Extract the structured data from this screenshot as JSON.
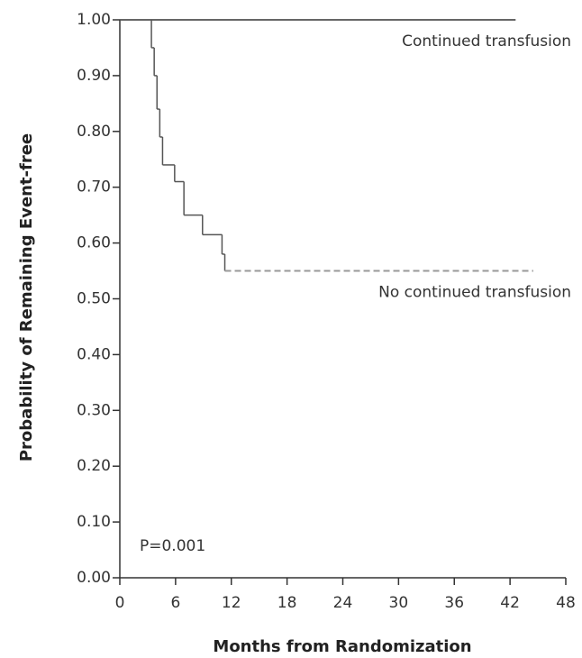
{
  "chart_data": {
    "type": "step",
    "x_label": "Months from Randomization",
    "y_label": "Probability of Remaining Event-free",
    "annotations": [
      "P=0.001"
    ],
    "xlim": [
      0,
      48
    ],
    "xticks": [
      0,
      6,
      12,
      18,
      24,
      30,
      36,
      42,
      48
    ],
    "ylim": [
      0,
      1
    ],
    "yticks": [
      {
        "value": 0,
        "label": "0.00"
      },
      {
        "value": 0.1,
        "label": "0.10"
      },
      {
        "value": 0.2,
        "label": "0.20"
      },
      {
        "value": 0.3,
        "label": "0.30"
      },
      {
        "value": 0.4,
        "label": "0.40"
      },
      {
        "value": 0.5,
        "label": "0.50"
      },
      {
        "value": 0.6,
        "label": "0.60"
      },
      {
        "value": 0.7,
        "label": "0.70"
      },
      {
        "value": 0.8,
        "label": "0.80"
      },
      {
        "value": 0.9,
        "label": "0.90"
      },
      {
        "value": 1,
        "label": "1.00"
      }
    ],
    "grid": false,
    "series": [
      {
        "name": "Continued transfusion",
        "color": "#333333",
        "tail": "solid",
        "x": [
          0,
          42.6
        ],
        "values": [
          1.0,
          1.0
        ]
      },
      {
        "name": "No continued transfusion",
        "color": "#555555",
        "tail": "dashed",
        "x": [
          0,
          3.4,
          3.7,
          4.0,
          4.3,
          4.6,
          5.9,
          6.9,
          8.9,
          11.0,
          11.3,
          44.5
        ],
        "values": [
          1.0,
          0.95,
          0.9,
          0.84,
          0.79,
          0.74,
          0.71,
          0.65,
          0.615,
          0.58,
          0.55,
          0.55
        ]
      }
    ]
  }
}
